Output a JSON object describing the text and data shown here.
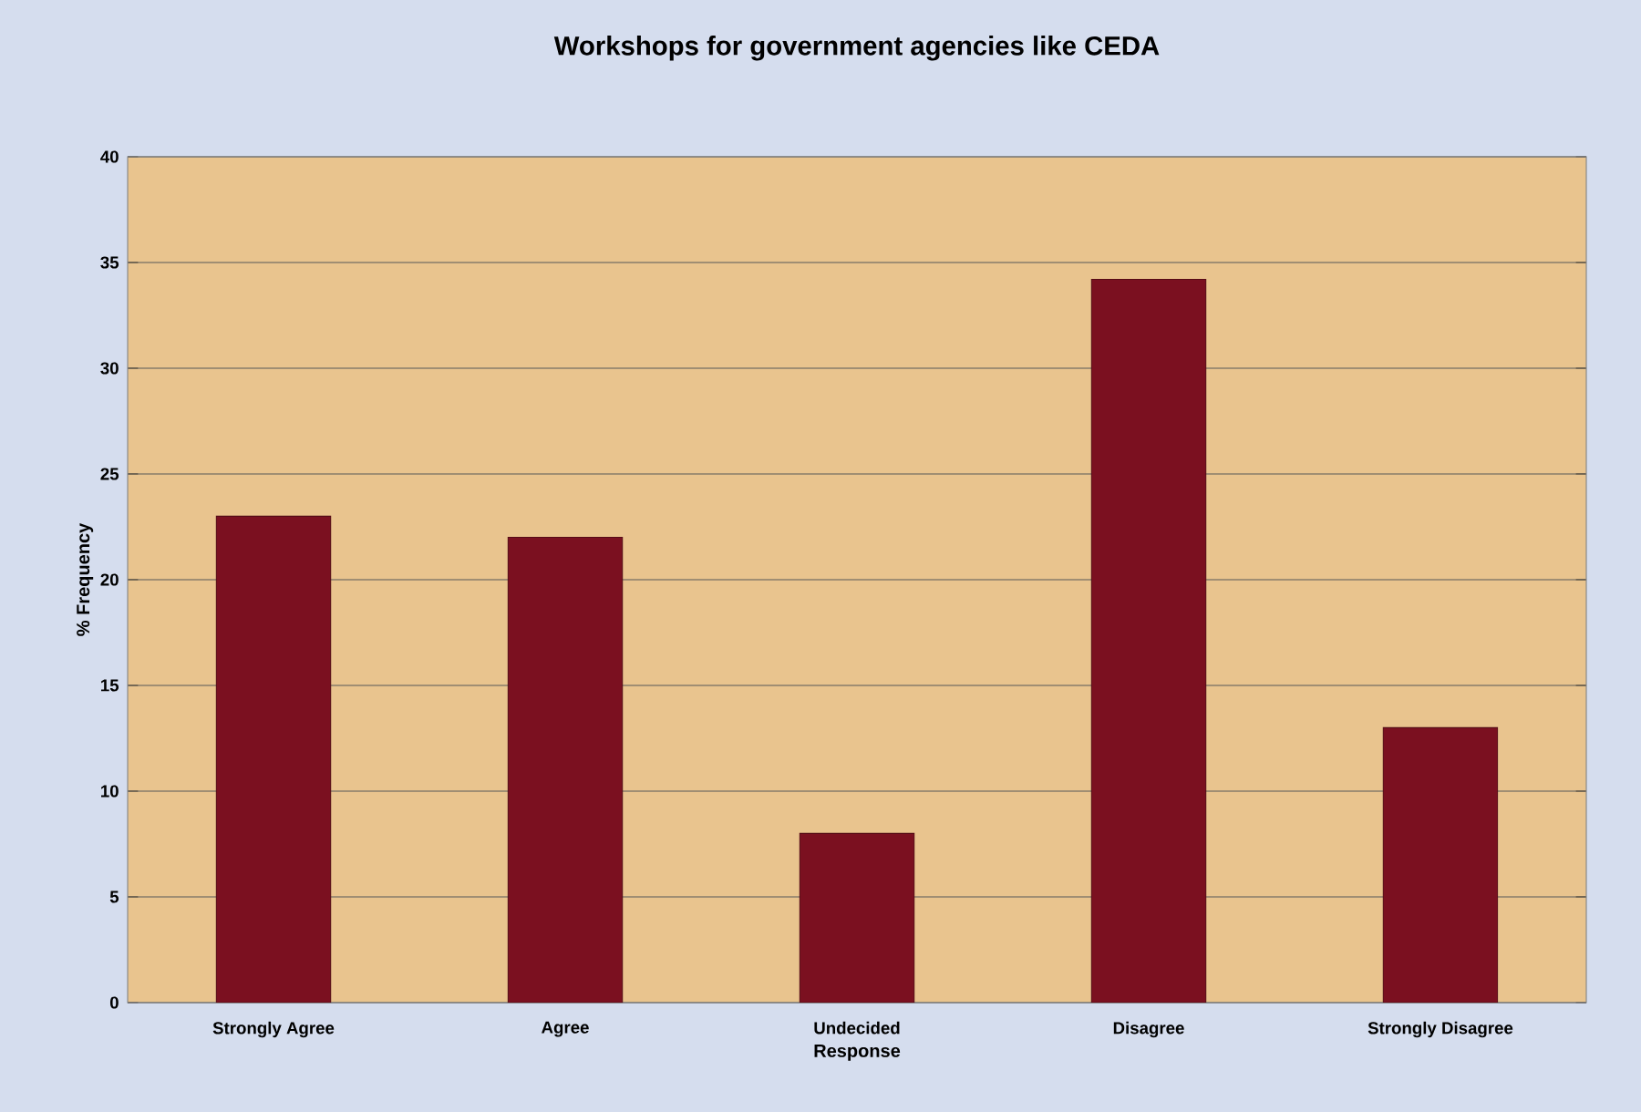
{
  "chart_data": {
    "type": "bar",
    "title": "Workshops for government agencies like CEDA",
    "xlabel": "Response",
    "ylabel": "% Frequency",
    "categories": [
      "Strongly Agree",
      "Agree",
      "Undecided",
      "Disagree",
      "Strongly Disagree"
    ],
    "values": [
      23,
      22,
      8,
      34.2,
      13
    ],
    "color": "#7b1020",
    "ylim": [
      0,
      40
    ],
    "yticks": [
      0,
      5,
      10,
      15,
      20,
      25,
      30,
      35,
      40
    ],
    "grid": "y"
  }
}
